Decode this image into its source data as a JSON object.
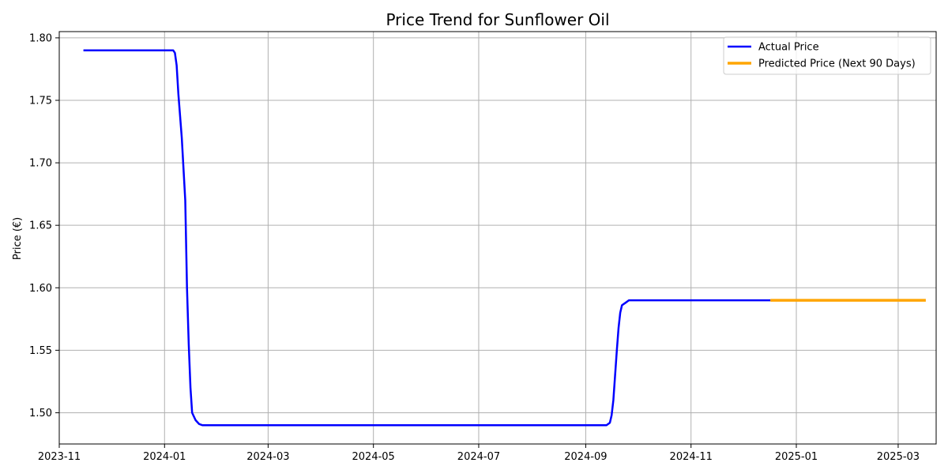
{
  "chart_data": {
    "type": "line",
    "title": "Price Trend for Sunflower Oil",
    "xlabel": "",
    "ylabel": "Price (€)",
    "xlim": [
      "2023-11-01",
      "2025-03-23"
    ],
    "ylim": [
      1.475,
      1.805
    ],
    "grid": true,
    "legend_position": "top-right",
    "x_ticks": [
      "2023-11",
      "2024-01",
      "2024-03",
      "2024-05",
      "2024-07",
      "2024-09",
      "2024-11",
      "2025-01",
      "2025-03"
    ],
    "y_ticks": [
      "1.50",
      "1.55",
      "1.60",
      "1.65",
      "1.70",
      "1.75",
      "1.80"
    ],
    "series": [
      {
        "name": "Actual Price",
        "color": "#0000ff",
        "points": [
          {
            "x": "2023-11-15",
            "y": 1.79
          },
          {
            "x": "2024-01-06",
            "y": 1.79
          },
          {
            "x": "2024-01-07",
            "y": 1.788
          },
          {
            "x": "2024-01-08",
            "y": 1.778
          },
          {
            "x": "2024-01-09",
            "y": 1.755
          },
          {
            "x": "2024-01-11",
            "y": 1.72
          },
          {
            "x": "2024-01-13",
            "y": 1.67
          },
          {
            "x": "2024-01-14",
            "y": 1.6
          },
          {
            "x": "2024-01-15",
            "y": 1.555
          },
          {
            "x": "2024-01-16",
            "y": 1.52
          },
          {
            "x": "2024-01-17",
            "y": 1.5
          },
          {
            "x": "2024-01-19",
            "y": 1.494
          },
          {
            "x": "2024-01-21",
            "y": 1.491
          },
          {
            "x": "2024-01-23",
            "y": 1.49
          },
          {
            "x": "2024-09-13",
            "y": 1.49
          },
          {
            "x": "2024-09-15",
            "y": 1.492
          },
          {
            "x": "2024-09-16",
            "y": 1.498
          },
          {
            "x": "2024-09-17",
            "y": 1.51
          },
          {
            "x": "2024-09-18",
            "y": 1.53
          },
          {
            "x": "2024-09-19",
            "y": 1.55
          },
          {
            "x": "2024-09-20",
            "y": 1.568
          },
          {
            "x": "2024-09-21",
            "y": 1.58
          },
          {
            "x": "2024-09-22",
            "y": 1.586
          },
          {
            "x": "2024-09-24",
            "y": 1.588
          },
          {
            "x": "2024-09-26",
            "y": 1.59
          },
          {
            "x": "2024-12-17",
            "y": 1.59
          }
        ]
      },
      {
        "name": "Predicted Price (Next 90 Days)",
        "color": "#ffa500",
        "points": [
          {
            "x": "2024-12-17",
            "y": 1.59
          },
          {
            "x": "2025-03-17",
            "y": 1.59
          }
        ]
      }
    ]
  }
}
